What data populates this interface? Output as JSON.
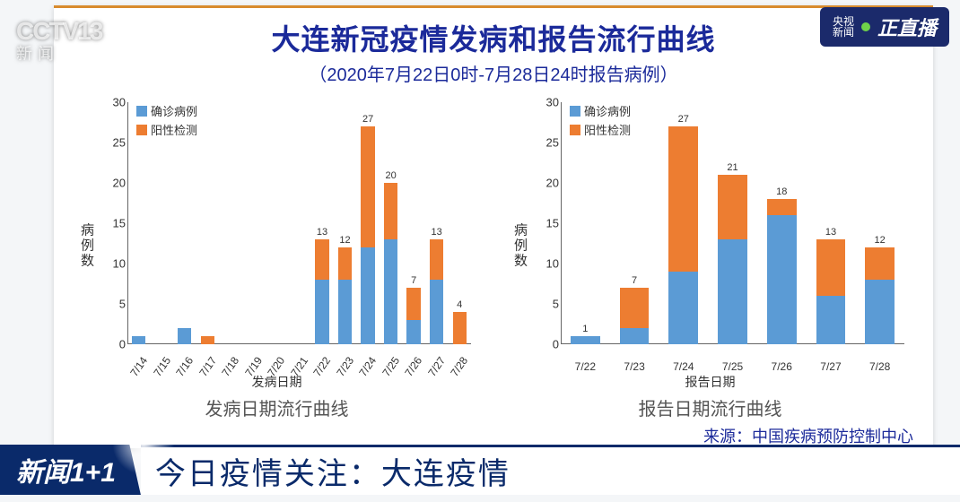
{
  "watermark": {
    "channel": "CCTV",
    "num": "13",
    "sub": "新闻"
  },
  "live_badge": {
    "stack1": "央视",
    "stack2": "新闻",
    "text": "正直播"
  },
  "partial_tag": "直播",
  "panel": {
    "title": "大连新冠疫情发病和报告流行曲线",
    "subtitle": "（2020年7月22日0时-7月28日24时报告病例）",
    "source": "来源：中国疾病预防控制中心"
  },
  "colors": {
    "confirmed": "#5b9bd5",
    "positive": "#ed7d31",
    "axis": "#666666",
    "title_blue": "#1b2a9a"
  },
  "legend": {
    "confirmed": "确诊病例",
    "positive": "阳性检测"
  },
  "y": {
    "label": "病例数",
    "max": 30,
    "ticks": [
      0,
      5,
      10,
      15,
      20,
      25,
      30
    ]
  },
  "chart1": {
    "x_title": "发病日期",
    "caption": "发病日期流行曲线",
    "rotate_x": true,
    "categories": [
      "7/14",
      "7/15",
      "7/16",
      "7/17",
      "7/18",
      "7/19",
      "7/20",
      "7/21",
      "7/22",
      "7/23",
      "7/24",
      "7/25",
      "7/26",
      "7/27",
      "7/28"
    ],
    "confirmed": [
      1,
      0,
      2,
      0,
      0,
      0,
      0,
      0,
      8,
      8,
      12,
      13,
      3,
      8,
      0
    ],
    "positive": [
      0,
      0,
      0,
      1,
      0,
      0,
      0,
      0,
      5,
      4,
      15,
      7,
      4,
      5,
      4
    ],
    "show_total_on": {
      "7/24": 27,
      "7/25": 20,
      "7/22": 13,
      "7/23": 12,
      "7/27": 13,
      "7/26": 7,
      "7/28": 4
    }
  },
  "chart2": {
    "x_title": "报告日期",
    "caption": "报告日期流行曲线",
    "rotate_x": false,
    "categories": [
      "7/22",
      "7/23",
      "7/24",
      "7/25",
      "7/26",
      "7/27",
      "7/28"
    ],
    "confirmed": [
      1,
      2,
      9,
      13,
      16,
      6,
      8
    ],
    "positive": [
      0,
      5,
      18,
      8,
      2,
      7,
      4
    ],
    "show_total_on": {
      "7/24": 27,
      "7/25": 21,
      "7/26": 18,
      "7/27": 13,
      "7/28": 12,
      "7/23": 7,
      "7/22": 1
    }
  },
  "lower_third": {
    "program": "新闻1+1",
    "headline": "今日疫情关注：大连疫情"
  }
}
